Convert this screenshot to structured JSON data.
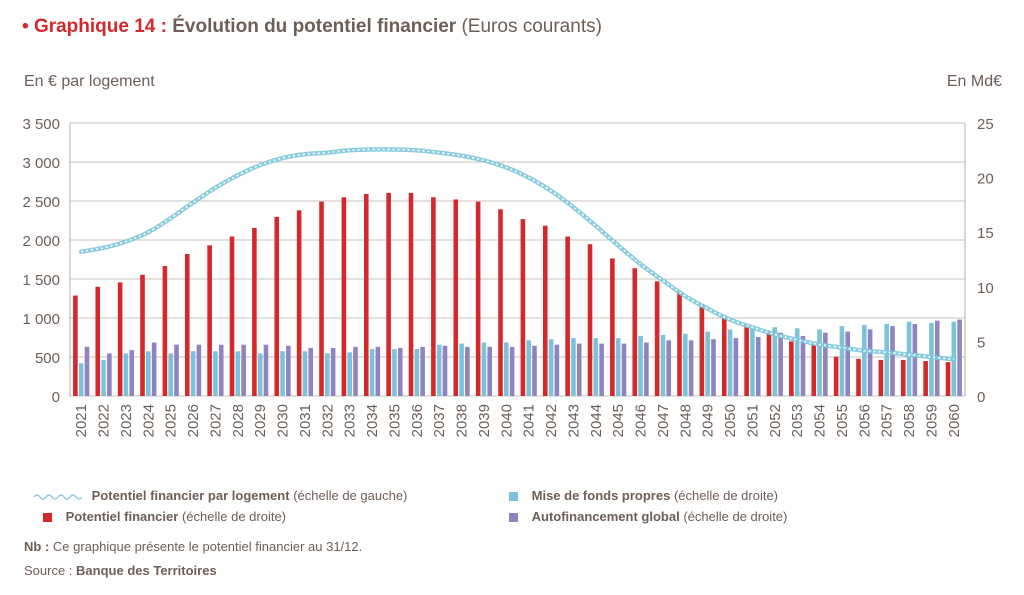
{
  "header": {
    "bullet": "•",
    "label": "Graphique 14 :",
    "title": "Évolution du potentiel financier",
    "unit": "(Euros courants)"
  },
  "axes": {
    "left_unit": "En € par logement",
    "right_unit": "En Md€"
  },
  "legend": {
    "items": [
      {
        "name": "Potentiel financier par logement",
        "suffix": "(échelle de gauche)",
        "color": "#7ec8dc"
      },
      {
        "name": "Mise de fonds propres",
        "suffix": "(échelle de droite)",
        "color": "#7cc3da"
      },
      {
        "name": "Potentiel financier",
        "suffix": "(échelle de droite)",
        "color": "#d4282a"
      },
      {
        "name": "Autofinancement global",
        "suffix": "(échelle de droite)",
        "color": "#8f83c2"
      }
    ]
  },
  "note": {
    "label": "Nb :",
    "text": "Ce graphique présente le potentiel financier au 31/12."
  },
  "source": {
    "label": "Source :",
    "text": "Banque des Territoires"
  },
  "chart_data": {
    "type": "bar",
    "categories": [
      "2021",
      "2022",
      "2023",
      "2024",
      "2025",
      "2026",
      "2027",
      "2028",
      "2029",
      "2030",
      "2031",
      "2032",
      "2033",
      "2034",
      "2035",
      "2036",
      "2037",
      "2038",
      "2039",
      "2040",
      "2041",
      "2042",
      "2043",
      "2044",
      "2045",
      "2046",
      "2047",
      "2048",
      "2049",
      "2050",
      "2051",
      "2052",
      "2053",
      "2054",
      "2055",
      "2056",
      "2057",
      "2058",
      "2059",
      "2060"
    ],
    "left_axis": {
      "min": 0,
      "max": 3500,
      "ticks": [
        0,
        500,
        1000,
        1500,
        2000,
        2500,
        3000,
        3500
      ],
      "tick_labels": [
        "0",
        "500",
        "1 000",
        "1 500",
        "2 000",
        "2 500",
        "3 000",
        "3 500"
      ]
    },
    "right_axis": {
      "min": 0,
      "max": 25,
      "ticks": [
        0,
        5,
        10,
        15,
        20,
        25
      ],
      "tick_labels": [
        "0",
        "5",
        "10",
        "15",
        "20",
        "25"
      ]
    },
    "grid": "horizontal",
    "legend_position": "bottom",
    "series": [
      {
        "name": "Potentiel financier",
        "type": "bar",
        "axis": "right",
        "color": "#d4282a",
        "values": [
          9.2,
          10.0,
          10.4,
          11.1,
          11.9,
          13.0,
          13.8,
          14.6,
          15.4,
          16.4,
          17.0,
          17.8,
          18.2,
          18.5,
          18.6,
          18.6,
          18.2,
          18.0,
          17.8,
          17.1,
          16.2,
          15.6,
          14.6,
          13.9,
          12.6,
          11.7,
          10.5,
          9.6,
          8.4,
          7.1,
          6.5,
          5.9,
          5.0,
          4.7,
          3.6,
          3.4,
          3.3,
          3.3,
          3.2,
          3.1
        ]
      },
      {
        "name": "Mise de fonds propres",
        "type": "bar",
        "axis": "right",
        "color": "#7cc3da",
        "values": [
          3.0,
          3.3,
          3.9,
          4.1,
          3.9,
          4.1,
          4.1,
          4.1,
          3.9,
          4.1,
          4.1,
          3.9,
          4.0,
          4.3,
          4.3,
          4.3,
          4.7,
          4.8,
          4.9,
          4.9,
          5.1,
          5.2,
          5.3,
          5.3,
          5.3,
          5.5,
          5.6,
          5.7,
          5.9,
          6.1,
          6.2,
          6.3,
          6.2,
          6.1,
          6.4,
          6.5,
          6.6,
          6.8,
          6.7,
          6.8
        ]
      },
      {
        "name": "Autofinancement global",
        "type": "bar",
        "axis": "right",
        "color": "#8f83c2",
        "values": [
          4.5,
          3.9,
          4.2,
          4.9,
          4.7,
          4.7,
          4.7,
          4.7,
          4.7,
          4.6,
          4.4,
          4.4,
          4.5,
          4.5,
          4.4,
          4.5,
          4.6,
          4.5,
          4.5,
          4.5,
          4.6,
          4.7,
          4.8,
          4.8,
          4.8,
          4.9,
          5.1,
          5.1,
          5.2,
          5.3,
          5.4,
          5.8,
          5.5,
          5.8,
          5.9,
          6.1,
          6.4,
          6.6,
          6.9,
          7.0
        ]
      },
      {
        "name": "Potentiel financier par logement",
        "type": "line",
        "axis": "left",
        "color": "#7ec8dc",
        "values": [
          1850,
          1900,
          1980,
          2100,
          2280,
          2480,
          2670,
          2830,
          2960,
          3050,
          3100,
          3120,
          3150,
          3160,
          3160,
          3150,
          3120,
          3080,
          3020,
          2930,
          2800,
          2630,
          2420,
          2180,
          1930,
          1690,
          1480,
          1280,
          1120,
          980,
          880,
          790,
          720,
          660,
          620,
          580,
          560,
          530,
          500,
          470
        ]
      }
    ]
  }
}
